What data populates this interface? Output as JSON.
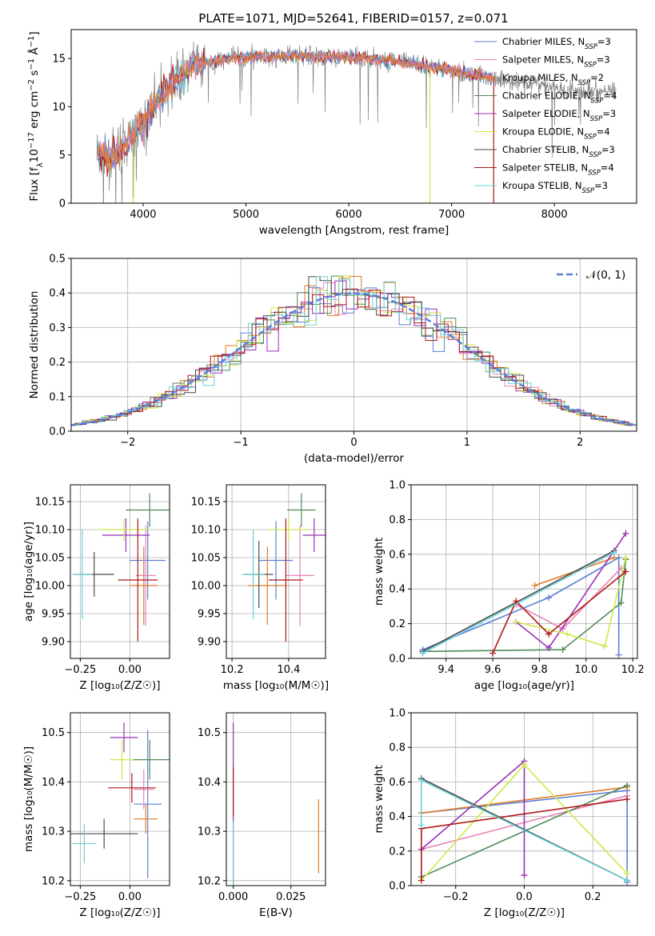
{
  "figure_title": "PLATE=1071, MJD=52641, FIBERID=0157, z=0.071",
  "legend_entries": [
    {
      "label": "Chabrier MILES, N",
      "sub": "SSP",
      "suffix": "=3",
      "color": "#5a7fd6"
    },
    {
      "label": "Salpeter MILES, N",
      "sub": "SSP",
      "suffix": "=3",
      "color": "#e883b8"
    },
    {
      "label": "Kroupa MILES, N",
      "sub": "SSP",
      "suffix": "=2",
      "color": "#e07b24"
    },
    {
      "label": "Chabrier ELODIE, N",
      "sub": "SSP",
      "suffix": "=4",
      "color": "#4f8a58"
    },
    {
      "label": "Salpeter ELODIE, N",
      "sub": "SSP",
      "suffix": "=3",
      "color": "#9b2fb8"
    },
    {
      "label": "Kroupa ELODIE, N",
      "sub": "SSP",
      "suffix": "=4",
      "color": "#cfe84a"
    },
    {
      "label": "Chabrier STELIB, N",
      "sub": "SSP",
      "suffix": "=3",
      "color": "#4a4a4a"
    },
    {
      "label": "Salpeter STELIB, N",
      "sub": "SSP",
      "suffix": "=4",
      "color": "#b01818"
    },
    {
      "label": "Kroupa STELIB, N",
      "sub": "SSP",
      "suffix": "=3",
      "color": "#6ad0d8"
    }
  ],
  "chart_data": [
    {
      "id": "spectrum",
      "type": "line",
      "xlabel": "wavelength [Angstrom, rest frame]",
      "ylabel": "Flux [f",
      "xlim": [
        3300,
        8800
      ],
      "ylim": [
        0,
        18
      ],
      "xticks": [
        "4000",
        "5000",
        "6000",
        "7000",
        "8000"
      ],
      "yticks": [
        "0",
        "5",
        "10",
        "15"
      ],
      "data_series": "observed spectrum (grey)",
      "continuum": {
        "x": [
          3550,
          3700,
          3900,
          4100,
          4300,
          4500,
          4800,
          5100,
          5400,
          5800,
          6200,
          6600,
          7000,
          7400,
          7800,
          8200,
          8600
        ],
        "y": [
          5.0,
          4.8,
          7.0,
          10.0,
          12.5,
          14.2,
          15.0,
          15.2,
          15.3,
          15.2,
          15.0,
          14.5,
          13.8,
          13.0,
          12.3,
          11.7,
          11.5
        ]
      }
    },
    {
      "id": "residuals",
      "type": "step",
      "xlabel": "(data-model)/error",
      "ylabel": "Normed distribution",
      "xlim": [
        -2.5,
        2.5
      ],
      "ylim": [
        0,
        0.5
      ],
      "xticks": [
        "−2",
        "−1",
        "0",
        "1",
        "2"
      ],
      "yticks": [
        "0.0",
        "0.1",
        "0.2",
        "0.3",
        "0.4",
        "0.5"
      ],
      "reference_label": "𝒩(0, 1)",
      "reference_color": "#5a7fd6"
    },
    {
      "id": "age_vs_Z",
      "type": "errorbar",
      "xlabel": "Z [log₁₀(Z/Z☉)]",
      "ylabel": "age  [log₁₀(age/yr)]",
      "xlim": [
        -0.3,
        0.2
      ],
      "ylim": [
        9.87,
        10.18
      ],
      "xticks": [
        "−0.25",
        "0.00"
      ],
      "yticks": [
        "9.90",
        "9.95",
        "10.00",
        "10.05",
        "10.10",
        "10.15"
      ],
      "points": [
        {
          "x": 0.09,
          "xerr": 0.09,
          "y": 10.045,
          "yerr": 0.07,
          "c": 0
        },
        {
          "x": 0.08,
          "xerr": 0.05,
          "y": 10.018,
          "yerr": 0.09,
          "c": 1
        },
        {
          "x": 0.07,
          "xerr": 0.07,
          "y": 10.0,
          "yerr": 0.07,
          "c": 2
        },
        {
          "x": 0.1,
          "xerr": 0.12,
          "y": 10.135,
          "yerr": 0.03,
          "c": 3
        },
        {
          "x": -0.02,
          "xerr": 0.12,
          "y": 10.09,
          "yerr": 0.03,
          "c": 4
        },
        {
          "x": -0.03,
          "xerr": 0.13,
          "y": 10.1,
          "yerr": 0.02,
          "c": 5
        },
        {
          "x": -0.18,
          "xerr": 0.1,
          "y": 10.02,
          "yerr": 0.04,
          "c": 6
        },
        {
          "x": 0.04,
          "xerr": 0.1,
          "y": 10.01,
          "yerr": 0.11,
          "c": 7
        },
        {
          "x": -0.24,
          "xerr": 0.05,
          "y": 10.02,
          "yerr": 0.08,
          "c": 8
        }
      ]
    },
    {
      "id": "age_vs_mass",
      "type": "errorbar",
      "xlabel": "mass [log₁₀(M/M☉)]",
      "ylabel": "",
      "xlim": [
        10.18,
        10.53
      ],
      "ylim": [
        9.87,
        10.18
      ],
      "xticks": [
        "10.2",
        "10.4"
      ],
      "yticks": [
        "9.90",
        "9.95",
        "10.00",
        "10.05",
        "10.10",
        "10.15"
      ],
      "points": [
        {
          "x": 10.355,
          "xerr": 0.06,
          "y": 10.045,
          "yerr": 0.07,
          "c": 0
        },
        {
          "x": 10.44,
          "xerr": 0.05,
          "y": 10.018,
          "yerr": 0.09,
          "c": 1
        },
        {
          "x": 10.325,
          "xerr": 0.07,
          "y": 10.0,
          "yerr": 0.07,
          "c": 2
        },
        {
          "x": 10.445,
          "xerr": 0.05,
          "y": 10.135,
          "yerr": 0.03,
          "c": 3
        },
        {
          "x": 10.49,
          "xerr": 0.04,
          "y": 10.09,
          "yerr": 0.03,
          "c": 4
        },
        {
          "x": 10.4,
          "xerr": 0.07,
          "y": 10.1,
          "yerr": 0.02,
          "c": 5
        },
        {
          "x": 10.295,
          "xerr": 0.05,
          "y": 10.02,
          "yerr": 0.06,
          "c": 6
        },
        {
          "x": 10.39,
          "xerr": 0.06,
          "y": 10.01,
          "yerr": 0.11,
          "c": 7
        },
        {
          "x": 10.275,
          "xerr": 0.04,
          "y": 10.02,
          "yerr": 0.08,
          "c": 8
        }
      ]
    },
    {
      "id": "weight_vs_age",
      "type": "line",
      "xlabel": "age  [log₁₀(age/yr)]",
      "ylabel": "mass weight",
      "xlim": [
        9.25,
        10.22
      ],
      "ylim": [
        0,
        1
      ],
      "xticks": [
        "9.4",
        "9.6",
        "9.8",
        "10.0",
        "10.2"
      ],
      "yticks": [
        "0.0",
        "0.2",
        "0.4",
        "0.6",
        "0.8",
        "1.0"
      ],
      "series": [
        {
          "c": 0,
          "x": [
            9.3,
            9.84,
            10.14,
            10.14
          ],
          "y": [
            0.05,
            0.35,
            0.58,
            0.02
          ]
        },
        {
          "c": 1,
          "x": [
            9.7,
            9.9,
            10.15
          ],
          "y": [
            0.31,
            0.17,
            0.52
          ]
        },
        {
          "c": 2,
          "x": [
            9.78,
            10.12
          ],
          "y": [
            0.42,
            0.58
          ]
        },
        {
          "c": 3,
          "x": [
            9.3,
            9.9,
            10.15,
            10.17
          ],
          "y": [
            0.04,
            0.05,
            0.32,
            0.57
          ]
        },
        {
          "c": 4,
          "x": [
            9.7,
            9.84,
            10.17
          ],
          "y": [
            0.21,
            0.06,
            0.72
          ]
        },
        {
          "c": 5,
          "x": [
            9.7,
            9.92,
            10.08,
            10.17
          ],
          "y": [
            0.21,
            0.14,
            0.07,
            0.58
          ]
        },
        {
          "c": 6,
          "x": [
            9.3,
            10.12
          ],
          "y": [
            0.04,
            0.62
          ]
        },
        {
          "c": 7,
          "x": [
            9.6,
            9.7,
            9.84,
            10.17
          ],
          "y": [
            0.03,
            0.33,
            0.14,
            0.5
          ]
        },
        {
          "c": 8,
          "x": [
            9.3,
            10.12
          ],
          "y": [
            0.03,
            0.61
          ]
        }
      ]
    },
    {
      "id": "mass_vs_Z",
      "type": "errorbar",
      "xlabel": "Z [log₁₀(Z/Z☉)]",
      "ylabel": "mass [log₁₀(M/M☉)]",
      "xlim": [
        -0.3,
        0.2
      ],
      "ylim": [
        10.19,
        10.54
      ],
      "xticks": [
        "−0.25",
        "0.00"
      ],
      "yticks": [
        "10.2",
        "10.3",
        "10.4",
        "10.5"
      ],
      "points": [
        {
          "x": 0.09,
          "xerr": 0.07,
          "y": 10.355,
          "yerr": 0.15,
          "c": 0
        },
        {
          "x": 0.07,
          "xerr": 0.05,
          "y": 10.385,
          "yerr": 0.04,
          "c": 1
        },
        {
          "x": 0.08,
          "xerr": 0.06,
          "y": 10.325,
          "yerr": 0.03,
          "c": 2
        },
        {
          "x": 0.1,
          "xerr": 0.1,
          "y": 10.445,
          "yerr": 0.04,
          "c": 3
        },
        {
          "x": -0.03,
          "xerr": 0.07,
          "y": 10.49,
          "yerr": 0.03,
          "c": 4
        },
        {
          "x": -0.04,
          "xerr": 0.06,
          "y": 10.445,
          "yerr": 0.04,
          "c": 5
        },
        {
          "x": -0.13,
          "xerr": 0.17,
          "y": 10.295,
          "yerr": 0.03,
          "c": 6
        },
        {
          "x": 0.01,
          "xerr": 0.12,
          "y": 10.388,
          "yerr": 0.03,
          "c": 7
        },
        {
          "x": -0.23,
          "xerr": 0.06,
          "y": 10.275,
          "yerr": 0.04,
          "c": 8
        }
      ]
    },
    {
      "id": "mass_vs_ebv",
      "type": "errorbar",
      "xlabel": "E(B-V)",
      "ylabel": "",
      "xlim": [
        -0.003,
        0.04
      ],
      "ylim": [
        10.19,
        10.54
      ],
      "xticks": [
        "0.000",
        "0.025"
      ],
      "yticks": [
        "10.2",
        "10.3",
        "10.4",
        "10.5"
      ],
      "points": [
        {
          "x": 0.0,
          "y": 10.27,
          "yerr": 0.25,
          "c": 4
        },
        {
          "x": 0.0,
          "y": 10.22,
          "yerr": 0.1,
          "c": 8
        },
        {
          "x": 0.0,
          "y": 10.38,
          "yerr": 0.05,
          "c": 7
        },
        {
          "x": 0.037,
          "y": 10.29,
          "yerr": 0.075,
          "c": 2
        }
      ]
    },
    {
      "id": "weight_vs_Z",
      "type": "line",
      "xlabel": "Z [log₁₀(Z/Z☉)]",
      "ylabel": "mass weight",
      "xlim": [
        -0.33,
        0.33
      ],
      "ylim": [
        0,
        1
      ],
      "xticks": [
        "−0.2",
        "0.0",
        "0.2"
      ],
      "yticks": [
        "0.0",
        "0.2",
        "0.4",
        "0.6",
        "0.8",
        "1.0"
      ],
      "series": [
        {
          "c": 0,
          "x": [
            -0.3,
            0.3,
            0.3
          ],
          "y": [
            0.42,
            0.55,
            0.02
          ]
        },
        {
          "c": 1,
          "x": [
            -0.3,
            0.3
          ],
          "y": [
            0.21,
            0.52
          ]
        },
        {
          "c": 2,
          "x": [
            -0.3,
            0.3
          ],
          "y": [
            0.42,
            0.57
          ]
        },
        {
          "c": 3,
          "x": [
            -0.3,
            0.3
          ],
          "y": [
            0.05,
            0.58
          ]
        },
        {
          "c": 4,
          "x": [
            -0.3,
            0.0,
            0.0
          ],
          "y": [
            0.21,
            0.72,
            0.06
          ]
        },
        {
          "c": 5,
          "x": [
            -0.3,
            0.0,
            0.3
          ],
          "y": [
            0.03,
            0.7,
            0.07
          ]
        },
        {
          "c": 6,
          "x": [
            -0.3,
            0.3
          ],
          "y": [
            0.62,
            0.03
          ]
        },
        {
          "c": 7,
          "x": [
            -0.3,
            -0.3,
            0.3
          ],
          "y": [
            0.03,
            0.33,
            0.5
          ]
        },
        {
          "c": 8,
          "x": [
            -0.3,
            -0.3,
            0.3
          ],
          "y": [
            0.35,
            0.61,
            0.03
          ]
        }
      ]
    }
  ]
}
